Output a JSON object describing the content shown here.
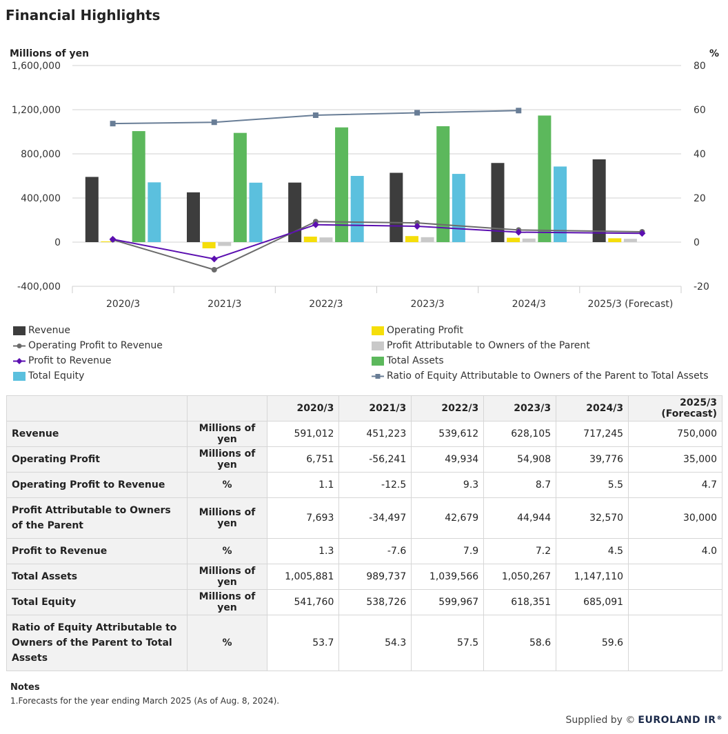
{
  "page": {
    "title": "Financial Highlights"
  },
  "chart_data": {
    "type": "bar",
    "combo": "bar+line",
    "title": "Financial Highlights",
    "categories": [
      "2020/3",
      "2021/3",
      "2022/3",
      "2023/3",
      "2024/3",
      "2025/3 (Forecast)"
    ],
    "y_left": {
      "label": "Millions of yen",
      "min": -400000,
      "max": 1600000,
      "ticks": [
        -400000,
        0,
        400000,
        800000,
        1200000,
        1600000
      ],
      "tick_labels": [
        "-400,000",
        "0",
        "400,000",
        "800,000",
        "1,200,000",
        "1,600,000"
      ]
    },
    "y_right": {
      "label": "%",
      "min": -20,
      "max": 80,
      "ticks": [
        -20,
        0,
        20,
        40,
        60,
        80
      ],
      "tick_labels": [
        "-20",
        "0",
        "20",
        "40",
        "60",
        "80"
      ]
    },
    "bar_series": [
      {
        "name": "Revenue",
        "color": "#3d3d3d",
        "values": [
          591012,
          451223,
          539612,
          628105,
          717245,
          750000
        ]
      },
      {
        "name": "Operating Profit",
        "color": "#f5de0a",
        "values": [
          6751,
          -56241,
          49934,
          54908,
          39776,
          35000
        ]
      },
      {
        "name": "Profit Attributable to Owners of the Parent",
        "color": "#c9c9c9",
        "values": [
          7693,
          -34497,
          42679,
          44944,
          32570,
          30000
        ]
      },
      {
        "name": "Total Assets",
        "color": "#5cb85c",
        "values": [
          1005881,
          989737,
          1039566,
          1050267,
          1147110,
          null
        ]
      },
      {
        "name": "Total Equity",
        "color": "#5bc0de",
        "values": [
          541760,
          538726,
          599967,
          618351,
          685091,
          null
        ]
      }
    ],
    "line_series": [
      {
        "name": "Operating Profit to Revenue",
        "color": "#6b6b6b",
        "marker": "circle",
        "values": [
          1.1,
          -12.5,
          9.3,
          8.7,
          5.5,
          4.7
        ]
      },
      {
        "name": "Profit to Revenue",
        "color": "#5b0fb0",
        "marker": "diamond",
        "values": [
          1.3,
          -7.6,
          7.9,
          7.2,
          4.5,
          4.0
        ]
      },
      {
        "name": "Ratio of Equity Attributable to Owners of the Parent to Total Assets",
        "color": "#687d96",
        "marker": "square",
        "values": [
          53.7,
          54.3,
          57.5,
          58.6,
          59.6,
          null
        ]
      }
    ]
  },
  "legend": [
    {
      "label": "Revenue",
      "kind": "bar",
      "color": "#3d3d3d"
    },
    {
      "label": "Operating Profit",
      "kind": "bar",
      "color": "#f5de0a"
    },
    {
      "label": "Operating Profit to Revenue",
      "kind": "line",
      "color": "#6b6b6b",
      "marker": "circle"
    },
    {
      "label": "Profit Attributable to Owners of the Parent",
      "kind": "bar",
      "color": "#c9c9c9"
    },
    {
      "label": "Profit to Revenue",
      "kind": "line",
      "color": "#5b0fb0",
      "marker": "diamond"
    },
    {
      "label": "Total Assets",
      "kind": "bar",
      "color": "#5cb85c"
    },
    {
      "label": "Total Equity",
      "kind": "bar",
      "color": "#5bc0de"
    },
    {
      "label": "Ratio of Equity Attributable to Owners of the Parent to Total Assets",
      "kind": "line",
      "color": "#687d96",
      "marker": "square"
    }
  ],
  "table": {
    "headers": [
      "",
      "",
      "2020/3",
      "2021/3",
      "2022/3",
      "2023/3",
      "2024/3",
      "2025/3 (Forecast)"
    ],
    "rows": [
      {
        "label": "Revenue",
        "unit": "Millions of yen",
        "values": [
          "591,012",
          "451,223",
          "539,612",
          "628,105",
          "717,245",
          "750,000"
        ]
      },
      {
        "label": "Operating Profit",
        "unit": "Millions of yen",
        "values": [
          "6,751",
          "-56,241",
          "49,934",
          "54,908",
          "39,776",
          "35,000"
        ]
      },
      {
        "label": "Operating Profit to Revenue",
        "unit": "%",
        "values": [
          "1.1",
          "-12.5",
          "9.3",
          "8.7",
          "5.5",
          "4.7"
        ]
      },
      {
        "label": "Profit Attributable to Owners of the Parent",
        "unit": "Millions of yen",
        "values": [
          "7,693",
          "-34,497",
          "42,679",
          "44,944",
          "32,570",
          "30,000"
        ]
      },
      {
        "label": "Profit to Revenue",
        "unit": "%",
        "values": [
          "1.3",
          "-7.6",
          "7.9",
          "7.2",
          "4.5",
          "4.0"
        ]
      },
      {
        "label": "Total Assets",
        "unit": "Millions of yen",
        "values": [
          "1,005,881",
          "989,737",
          "1,039,566",
          "1,050,267",
          "1,147,110",
          ""
        ]
      },
      {
        "label": "Total Equity",
        "unit": "Millions of yen",
        "values": [
          "541,760",
          "538,726",
          "599,967",
          "618,351",
          "685,091",
          ""
        ]
      },
      {
        "label": "Ratio of Equity Attributable to Owners of the Parent to Total Assets",
        "unit": "%",
        "values": [
          "53.7",
          "54.3",
          "57.5",
          "58.6",
          "59.6",
          ""
        ]
      }
    ]
  },
  "notes": {
    "title": "Notes",
    "lines": [
      "1.Forecasts for the year ending March 2025 (As of Aug. 8, 2024)."
    ]
  },
  "footer": {
    "supplied_by": "Supplied by ©",
    "brand": "EUROLAND IR",
    "reg": "®"
  }
}
